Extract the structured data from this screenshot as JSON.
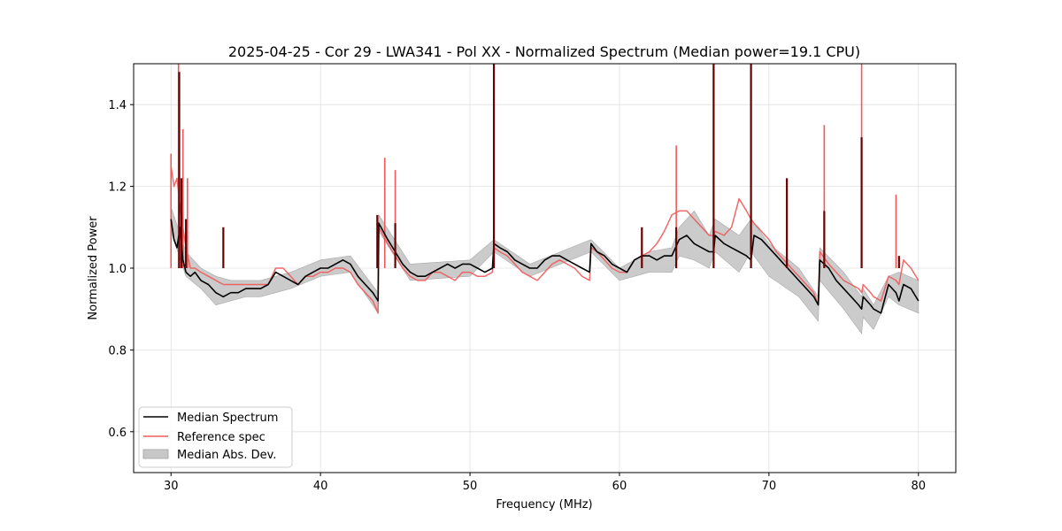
{
  "chart_data": {
    "type": "line",
    "title": "2025-04-25 - Cor 29 - LWA341 - Pol XX - Normalized Spectrum (Median power=19.1 CPU)",
    "xlabel": "Frequency (MHz)",
    "ylabel": "Normalized Power",
    "xlim": [
      27.5,
      82.5
    ],
    "ylim": [
      0.5,
      1.5
    ],
    "xticks": [
      30,
      40,
      50,
      60,
      70,
      80
    ],
    "yticks": [
      0.6,
      0.8,
      1.0,
      1.2,
      1.4
    ],
    "xtick_labels": [
      "30",
      "40",
      "50",
      "60",
      "70",
      "80"
    ],
    "ytick_labels": [
      "0.6",
      "0.8",
      "1.0",
      "1.2",
      "1.4"
    ],
    "grid": true,
    "legend_position": "lower-left",
    "series": [
      {
        "name": "Median Spectrum",
        "color": "#000000",
        "x": [
          30.0,
          30.2,
          30.4,
          30.6,
          30.8,
          31.0,
          31.3,
          31.6,
          32.0,
          32.5,
          33.0,
          33.5,
          34.0,
          34.5,
          35.0,
          35.5,
          36.0,
          36.5,
          37.0,
          37.5,
          38.0,
          38.5,
          39.0,
          39.5,
          40.0,
          40.5,
          41.0,
          41.5,
          42.0,
          42.5,
          43.0,
          43.5,
          43.85,
          43.9,
          44.5,
          45.0,
          45.5,
          46.0,
          46.5,
          47.0,
          47.5,
          48.0,
          48.5,
          49.0,
          49.5,
          50.0,
          50.5,
          51.0,
          51.5,
          51.6,
          52.0,
          52.5,
          53.0,
          53.5,
          54.0,
          54.5,
          55.0,
          55.5,
          56.0,
          56.5,
          57.0,
          57.5,
          58.0,
          58.1,
          58.5,
          59.0,
          59.5,
          60.0,
          60.5,
          61.0,
          61.5,
          62.0,
          62.5,
          63.0,
          63.5,
          64.0,
          64.5,
          65.0,
          65.5,
          66.0,
          66.3,
          66.4,
          67.0,
          67.5,
          68.0,
          68.5,
          68.8,
          69.0,
          69.5,
          70.0,
          70.5,
          71.0,
          71.5,
          72.0,
          72.5,
          73.0,
          73.3,
          73.4,
          74.0,
          74.5,
          75.0,
          75.5,
          76.0,
          76.2,
          76.3,
          76.8,
          77.0,
          77.5,
          78.0,
          78.5,
          78.7,
          79.0,
          79.5,
          80.0
        ],
        "y": [
          1.12,
          1.07,
          1.05,
          1.1,
          1.02,
          0.99,
          0.98,
          0.99,
          0.97,
          0.96,
          0.94,
          0.93,
          0.94,
          0.94,
          0.95,
          0.95,
          0.95,
          0.96,
          0.99,
          0.98,
          0.97,
          0.96,
          0.98,
          0.99,
          1.0,
          1.0,
          1.01,
          1.02,
          1.01,
          0.98,
          0.96,
          0.94,
          0.92,
          1.11,
          1.07,
          1.04,
          1.01,
          0.99,
          0.98,
          0.98,
          0.99,
          1.0,
          1.01,
          1.0,
          1.01,
          1.01,
          1.0,
          0.99,
          1.0,
          1.06,
          1.05,
          1.04,
          1.02,
          1.01,
          1.0,
          1.0,
          1.02,
          1.03,
          1.03,
          1.02,
          1.01,
          1.0,
          0.99,
          1.06,
          1.04,
          1.03,
          1.01,
          1.0,
          0.99,
          1.02,
          1.03,
          1.03,
          1.02,
          1.03,
          1.03,
          1.07,
          1.08,
          1.06,
          1.05,
          1.04,
          1.04,
          1.08,
          1.06,
          1.05,
          1.04,
          1.03,
          1.02,
          1.08,
          1.07,
          1.05,
          1.03,
          1.01,
          0.99,
          0.97,
          0.95,
          0.93,
          0.91,
          1.02,
          1.0,
          0.97,
          0.95,
          0.93,
          0.91,
          0.9,
          0.93,
          0.91,
          0.9,
          0.89,
          0.96,
          0.94,
          0.92,
          0.96,
          0.95,
          0.92
        ]
      },
      {
        "name": "Reference spec",
        "color": "#f05a5a",
        "x": [
          30.0,
          30.2,
          30.4,
          30.6,
          30.8,
          31.0,
          31.3,
          31.6,
          32.0,
          32.5,
          33.0,
          33.5,
          34.0,
          34.5,
          35.0,
          35.5,
          36.0,
          36.5,
          37.0,
          37.5,
          38.0,
          38.5,
          39.0,
          39.5,
          40.0,
          40.5,
          41.0,
          41.5,
          42.0,
          42.5,
          43.0,
          43.5,
          43.85,
          43.9,
          44.5,
          45.0,
          45.5,
          46.0,
          46.5,
          47.0,
          47.5,
          48.0,
          48.5,
          49.0,
          49.5,
          50.0,
          50.5,
          51.0,
          51.5,
          51.6,
          52.0,
          52.5,
          53.0,
          53.5,
          54.0,
          54.5,
          55.0,
          55.5,
          56.0,
          56.5,
          57.0,
          57.5,
          58.0,
          58.1,
          58.5,
          59.0,
          59.5,
          60.0,
          60.5,
          61.0,
          61.5,
          62.0,
          62.5,
          63.0,
          63.5,
          64.0,
          64.5,
          65.0,
          65.5,
          66.0,
          66.3,
          66.4,
          67.0,
          67.5,
          68.0,
          68.5,
          68.8,
          69.0,
          69.5,
          70.0,
          70.5,
          71.0,
          71.5,
          72.0,
          72.5,
          73.0,
          73.3,
          73.4,
          74.0,
          74.5,
          75.0,
          75.5,
          76.0,
          76.2,
          76.3,
          76.8,
          77.0,
          77.5,
          78.0,
          78.5,
          78.7,
          79.0,
          79.5,
          80.0
        ],
        "y": [
          1.25,
          1.2,
          1.22,
          1.15,
          1.1,
          1.05,
          1.0,
          1.0,
          0.99,
          0.98,
          0.97,
          0.96,
          0.96,
          0.96,
          0.96,
          0.96,
          0.96,
          0.96,
          1.0,
          1.0,
          0.98,
          0.96,
          0.98,
          0.98,
          0.99,
          0.99,
          1.0,
          1.0,
          0.99,
          0.96,
          0.94,
          0.92,
          0.89,
          1.1,
          1.06,
          1.03,
          1.0,
          0.98,
          0.97,
          0.97,
          0.99,
          0.99,
          0.98,
          0.97,
          0.99,
          0.99,
          0.98,
          0.98,
          0.99,
          1.05,
          1.04,
          1.03,
          1.01,
          0.99,
          0.98,
          0.97,
          0.99,
          1.01,
          1.02,
          1.01,
          1.0,
          0.98,
          0.97,
          1.05,
          1.04,
          1.02,
          1.0,
          0.99,
          0.99,
          1.02,
          1.03,
          1.04,
          1.06,
          1.09,
          1.13,
          1.14,
          1.14,
          1.12,
          1.1,
          1.08,
          1.08,
          1.09,
          1.08,
          1.1,
          1.17,
          1.14,
          1.12,
          1.11,
          1.09,
          1.07,
          1.04,
          1.02,
          1.0,
          0.98,
          0.96,
          0.94,
          0.91,
          1.04,
          1.01,
          0.99,
          0.97,
          0.96,
          0.95,
          0.94,
          0.96,
          0.94,
          0.93,
          0.92,
          0.98,
          0.97,
          0.96,
          1.02,
          1.0,
          0.97
        ]
      }
    ],
    "band": {
      "name": "Median Abs. Dev.",
      "color": "#b0b0b0",
      "x": [
        30.0,
        31.0,
        32.0,
        33.0,
        34.0,
        35.0,
        36.0,
        38.0,
        40.0,
        42.0,
        43.85,
        43.9,
        46.0,
        50.0,
        51.6,
        54.0,
        58.1,
        60.0,
        62.0,
        63.5,
        64.0,
        65.0,
        66.0,
        66.4,
        68.0,
        68.8,
        70.0,
        72.0,
        73.3,
        73.4,
        75.0,
        76.2,
        76.3,
        77.0,
        78.0,
        78.7,
        80.0
      ],
      "upper": [
        1.15,
        1.04,
        1.0,
        0.98,
        0.97,
        0.97,
        0.97,
        0.99,
        1.02,
        1.03,
        0.94,
        1.13,
        1.01,
        1.02,
        1.07,
        1.01,
        1.07,
        1.0,
        1.04,
        1.05,
        1.1,
        1.14,
        1.08,
        1.12,
        1.08,
        1.12,
        1.06,
        1.0,
        0.93,
        1.05,
        0.99,
        0.93,
        0.95,
        0.91,
        0.98,
        0.99,
        0.97
      ],
      "lower": [
        1.09,
        0.98,
        0.95,
        0.91,
        0.92,
        0.93,
        0.93,
        0.95,
        0.98,
        0.99,
        0.89,
        1.09,
        0.97,
        0.98,
        1.04,
        0.98,
        1.04,
        0.97,
        0.99,
        0.99,
        1.03,
        1.02,
        1.0,
        1.04,
        0.99,
        1.04,
        0.98,
        0.93,
        0.87,
        0.97,
        0.9,
        0.84,
        0.88,
        0.85,
        0.93,
        0.91,
        0.89
      ]
    },
    "median_spikes": [
      {
        "x": 30.55,
        "y": 1.48
      },
      {
        "x": 30.7,
        "y": 1.22
      },
      {
        "x": 31.0,
        "y": 1.12
      },
      {
        "x": 33.5,
        "y": 1.1
      },
      {
        "x": 43.8,
        "y": 1.13
      },
      {
        "x": 45.0,
        "y": 1.11
      },
      {
        "x": 51.6,
        "y": 1.5
      },
      {
        "x": 61.5,
        "y": 1.1
      },
      {
        "x": 63.8,
        "y": 1.1
      },
      {
        "x": 66.3,
        "y": 1.5
      },
      {
        "x": 68.8,
        "y": 1.5
      },
      {
        "x": 71.2,
        "y": 1.22
      },
      {
        "x": 73.7,
        "y": 1.14
      },
      {
        "x": 76.2,
        "y": 1.32
      },
      {
        "x": 78.7,
        "y": 1.03
      }
    ],
    "reference_spikes": [
      {
        "x": 30.0,
        "y": 1.28
      },
      {
        "x": 30.5,
        "y": 1.5
      },
      {
        "x": 30.8,
        "y": 1.34
      },
      {
        "x": 31.1,
        "y": 1.22
      },
      {
        "x": 44.3,
        "y": 1.27
      },
      {
        "x": 45.0,
        "y": 1.24
      },
      {
        "x": 51.6,
        "y": 1.5
      },
      {
        "x": 63.8,
        "y": 1.3
      },
      {
        "x": 66.3,
        "y": 1.5
      },
      {
        "x": 68.8,
        "y": 1.5
      },
      {
        "x": 73.7,
        "y": 1.35
      },
      {
        "x": 76.2,
        "y": 1.5
      },
      {
        "x": 78.5,
        "y": 1.18
      }
    ],
    "legend": [
      {
        "label": "Median Spectrum",
        "kind": "line",
        "color": "#000000"
      },
      {
        "label": "Reference spec",
        "kind": "line",
        "color": "#f05a5a"
      },
      {
        "label": "Median Abs. Dev.",
        "kind": "patch",
        "color": "#c8c8c8"
      }
    ]
  }
}
